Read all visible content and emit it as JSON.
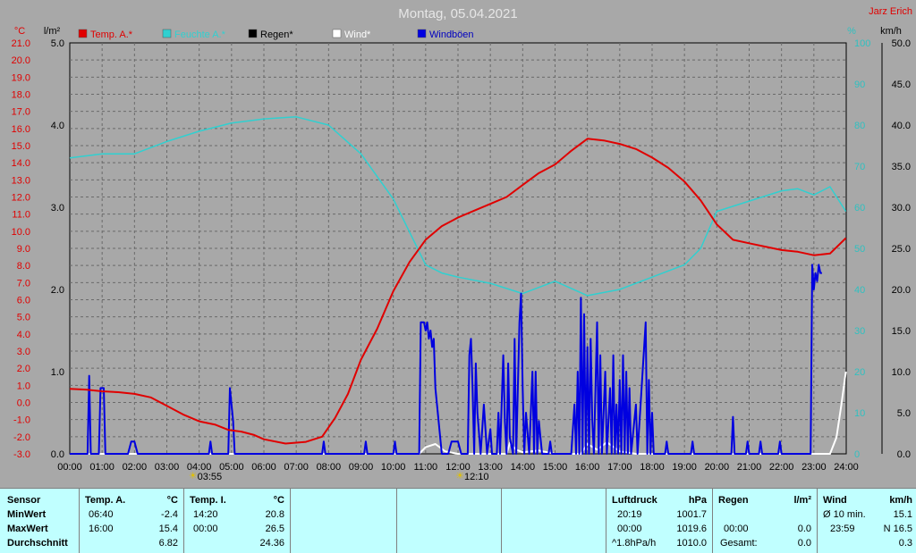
{
  "header": {
    "title": "Montag, 05.04.2021",
    "author": "Jarz Erich",
    "unit_temp": "°C",
    "unit_rain": "l/m²",
    "unit_hum": "%",
    "unit_wind": "km/h"
  },
  "colors": {
    "temp": "#e00000",
    "hum": "#30d0d0",
    "rain": "#000000",
    "wind": "#ffffff",
    "gust": "#0000e0",
    "grid": "#6a6a6a",
    "hum_axis": "#30c0c0",
    "plot_bg": "#a8a8a8"
  },
  "chart_data": {
    "type": "line",
    "title": "Montag, 05.04.2021",
    "x_ticks": [
      "00:00",
      "01:00",
      "02:00",
      "03:00",
      "04:00",
      "05:00",
      "06:00",
      "07:00",
      "08:00",
      "09:00",
      "10:00",
      "11:00",
      "12:00",
      "13:00",
      "14:00",
      "15:00",
      "16:00",
      "17:00",
      "18:00",
      "19:00",
      "20:00",
      "21:00",
      "22:00",
      "23:00",
      "24:00"
    ],
    "xlim": [
      0,
      24
    ],
    "axes": {
      "temp": {
        "unit": "°C",
        "range": [
          -3.0,
          21.0
        ],
        "ticks": [
          "21.0",
          "20.0",
          "19.0",
          "18.0",
          "17.0",
          "16.0",
          "15.0",
          "14.0",
          "13.0",
          "12.0",
          "11.0",
          "10.0",
          "9.0",
          "8.0",
          "7.0",
          "6.0",
          "5.0",
          "4.0",
          "3.0",
          "2.0",
          "1.0",
          "0.0",
          "-1.0",
          "-2.0",
          "-3.0"
        ]
      },
      "rain": {
        "unit": "l/m²",
        "range": [
          0,
          5.0
        ],
        "ticks": [
          "5.0",
          "4.0",
          "3.0",
          "2.0",
          "1.0",
          "0.0"
        ]
      },
      "humidity": {
        "unit": "%",
        "range": [
          0,
          100
        ],
        "ticks": [
          "100",
          "90",
          "80",
          "70",
          "60",
          "50",
          "40",
          "30",
          "20",
          "10",
          "0"
        ]
      },
      "wind": {
        "unit": "km/h",
        "range": [
          0,
          50
        ],
        "ticks": [
          "50.0",
          "45.0",
          "40.0",
          "35.0",
          "30.0",
          "25.0",
          "20.0",
          "15.0",
          "10.0",
          "5.0",
          "0.0"
        ]
      }
    },
    "series": [
      {
        "name": "Temp. A.*",
        "axis": "temp",
        "points": [
          [
            0,
            0.8
          ],
          [
            0.5,
            0.75
          ],
          [
            1,
            0.65
          ],
          [
            1.5,
            0.6
          ],
          [
            2,
            0.5
          ],
          [
            2.5,
            0.3
          ],
          [
            3,
            -0.2
          ],
          [
            3.5,
            -0.7
          ],
          [
            4,
            -1.1
          ],
          [
            4.5,
            -1.3
          ],
          [
            4.9,
            -1.6
          ],
          [
            5.3,
            -1.7
          ],
          [
            5.7,
            -1.9
          ],
          [
            6,
            -2.15
          ],
          [
            6.67,
            -2.4
          ],
          [
            7.3,
            -2.3
          ],
          [
            7.8,
            -2.0
          ],
          [
            8.2,
            -0.9
          ],
          [
            8.6,
            0.5
          ],
          [
            9,
            2.5
          ],
          [
            9.5,
            4.3
          ],
          [
            10,
            6.5
          ],
          [
            10.5,
            8.2
          ],
          [
            11,
            9.5
          ],
          [
            11.5,
            10.3
          ],
          [
            12,
            10.8
          ],
          [
            12.5,
            11.2
          ],
          [
            13,
            11.6
          ],
          [
            13.5,
            12.0
          ],
          [
            14,
            12.7
          ],
          [
            14.5,
            13.4
          ],
          [
            15,
            13.9
          ],
          [
            15.5,
            14.7
          ],
          [
            16,
            15.4
          ],
          [
            16.5,
            15.3
          ],
          [
            17,
            15.1
          ],
          [
            17.5,
            14.8
          ],
          [
            18,
            14.3
          ],
          [
            18.5,
            13.7
          ],
          [
            19,
            12.9
          ],
          [
            19.5,
            11.8
          ],
          [
            20,
            10.4
          ],
          [
            20.5,
            9.5
          ],
          [
            21,
            9.3
          ],
          [
            21.5,
            9.1
          ],
          [
            22,
            8.9
          ],
          [
            22.5,
            8.8
          ],
          [
            23,
            8.6
          ],
          [
            23.5,
            8.7
          ],
          [
            23.99,
            9.6
          ]
        ]
      },
      {
        "name": "Feuchte A.*",
        "axis": "humidity",
        "points": [
          [
            0,
            72
          ],
          [
            1,
            73
          ],
          [
            2,
            73
          ],
          [
            3,
            76
          ],
          [
            4,
            78.5
          ],
          [
            5,
            80.5
          ],
          [
            6,
            81.5
          ],
          [
            7,
            82
          ],
          [
            8,
            80
          ],
          [
            9,
            73
          ],
          [
            10,
            62
          ],
          [
            11,
            46
          ],
          [
            11.5,
            44
          ],
          [
            12,
            43
          ],
          [
            13,
            41.5
          ],
          [
            14,
            39
          ],
          [
            15,
            42
          ],
          [
            16,
            38.5
          ],
          [
            17,
            40
          ],
          [
            18,
            43
          ],
          [
            19,
            46
          ],
          [
            19.5,
            50
          ],
          [
            20,
            59
          ],
          [
            21,
            61.5
          ],
          [
            22,
            64
          ],
          [
            22.5,
            64.5
          ],
          [
            23,
            63
          ],
          [
            23.5,
            65
          ],
          [
            23.99,
            59
          ]
        ]
      },
      {
        "name": "Regen*",
        "axis": "rain",
        "points": [
          [
            0,
            0
          ],
          [
            24,
            0
          ]
        ]
      },
      {
        "name": "Wind*",
        "axis": "wind",
        "points": [
          [
            0,
            0
          ],
          [
            10.8,
            0
          ],
          [
            11,
            0.8
          ],
          [
            11.3,
            1.2
          ],
          [
            11.6,
            0.3
          ],
          [
            12,
            0
          ],
          [
            13.5,
            0
          ],
          [
            13.6,
            1.3
          ],
          [
            13.8,
            0.5
          ],
          [
            14,
            0.2
          ],
          [
            14.5,
            0.4
          ],
          [
            15,
            0
          ],
          [
            15.8,
            0
          ],
          [
            16,
            1.2
          ],
          [
            16.3,
            0.5
          ],
          [
            16.6,
            1.4
          ],
          [
            17,
            0.3
          ],
          [
            17.5,
            0
          ],
          [
            23.5,
            0
          ],
          [
            23.7,
            2
          ],
          [
            23.85,
            6
          ],
          [
            23.99,
            10
          ]
        ]
      },
      {
        "name": "Windböen",
        "axis": "wind",
        "points": [
          [
            0,
            0
          ],
          [
            0.55,
            0
          ],
          [
            0.6,
            9.5
          ],
          [
            0.65,
            0
          ],
          [
            0.9,
            0
          ],
          [
            0.95,
            8
          ],
          [
            1.05,
            8
          ],
          [
            1.1,
            0
          ],
          [
            1.8,
            0
          ],
          [
            1.9,
            1.5
          ],
          [
            2,
            1.5
          ],
          [
            2.1,
            0
          ],
          [
            4.3,
            0
          ],
          [
            4.35,
            1.5
          ],
          [
            4.4,
            0
          ],
          [
            4.9,
            0
          ],
          [
            4.95,
            8
          ],
          [
            5.05,
            4
          ],
          [
            5.1,
            0
          ],
          [
            7.8,
            0
          ],
          [
            7.85,
            1.5
          ],
          [
            7.9,
            0
          ],
          [
            9.1,
            0
          ],
          [
            9.15,
            1.5
          ],
          [
            9.2,
            0
          ],
          [
            10,
            0
          ],
          [
            10.05,
            1.5
          ],
          [
            10.1,
            0
          ],
          [
            10.8,
            0
          ],
          [
            10.85,
            16
          ],
          [
            10.95,
            16
          ],
          [
            11.0,
            15
          ],
          [
            11.05,
            16
          ],
          [
            11.1,
            14
          ],
          [
            11.15,
            15
          ],
          [
            11.2,
            13
          ],
          [
            11.25,
            14
          ],
          [
            11.3,
            8
          ],
          [
            11.4,
            4
          ],
          [
            11.5,
            0
          ],
          [
            11.7,
            0
          ],
          [
            11.8,
            1.5
          ],
          [
            12,
            1.5
          ],
          [
            12.1,
            0
          ],
          [
            12.3,
            0
          ],
          [
            12.35,
            12
          ],
          [
            12.4,
            14
          ],
          [
            12.45,
            8
          ],
          [
            12.5,
            0
          ],
          [
            12.55,
            11
          ],
          [
            12.6,
            5
          ],
          [
            12.7,
            0
          ],
          [
            12.8,
            6
          ],
          [
            12.9,
            0
          ],
          [
            13,
            3
          ],
          [
            13.05,
            0
          ],
          [
            13.2,
            0
          ],
          [
            13.25,
            5
          ],
          [
            13.3,
            0
          ],
          [
            13.4,
            12
          ],
          [
            13.45,
            4
          ],
          [
            13.5,
            0
          ],
          [
            13.55,
            11
          ],
          [
            13.6,
            2
          ],
          [
            13.7,
            0
          ],
          [
            13.75,
            14
          ],
          [
            13.8,
            0
          ],
          [
            13.9,
            16
          ],
          [
            13.95,
            19.5
          ],
          [
            14.0,
            8
          ],
          [
            14.05,
            0
          ],
          [
            14.1,
            5
          ],
          [
            14.2,
            0
          ],
          [
            14.3,
            10
          ],
          [
            14.35,
            0
          ],
          [
            14.4,
            10
          ],
          [
            14.45,
            0
          ],
          [
            14.5,
            4
          ],
          [
            14.6,
            0
          ],
          [
            14.8,
            0
          ],
          [
            14.85,
            1.5
          ],
          [
            14.9,
            0
          ],
          [
            15.5,
            0
          ],
          [
            15.6,
            6
          ],
          [
            15.65,
            0
          ],
          [
            15.7,
            10
          ],
          [
            15.75,
            0
          ],
          [
            15.8,
            19
          ],
          [
            15.85,
            0
          ],
          [
            15.9,
            17
          ],
          [
            15.95,
            0
          ],
          [
            16.0,
            13
          ],
          [
            16.05,
            0
          ],
          [
            16.1,
            14
          ],
          [
            16.15,
            4
          ],
          [
            16.2,
            0
          ],
          [
            16.3,
            16
          ],
          [
            16.35,
            0
          ],
          [
            16.4,
            12
          ],
          [
            16.45,
            0
          ],
          [
            16.55,
            10
          ],
          [
            16.6,
            0
          ],
          [
            16.7,
            8
          ],
          [
            16.75,
            0
          ],
          [
            16.8,
            12
          ],
          [
            16.85,
            0
          ],
          [
            16.9,
            6
          ],
          [
            16.95,
            0
          ],
          [
            17.0,
            9
          ],
          [
            17.05,
            0
          ],
          [
            17.1,
            12
          ],
          [
            17.15,
            0
          ],
          [
            17.2,
            10
          ],
          [
            17.25,
            0
          ],
          [
            17.3,
            8
          ],
          [
            17.35,
            0
          ],
          [
            17.5,
            6
          ],
          [
            17.55,
            0
          ],
          [
            17.8,
            16
          ],
          [
            17.85,
            0
          ],
          [
            17.9,
            9
          ],
          [
            17.95,
            0
          ],
          [
            18,
            5
          ],
          [
            18.05,
            0
          ],
          [
            18.4,
            0
          ],
          [
            18.45,
            1.5
          ],
          [
            18.5,
            0
          ],
          [
            19.2,
            0
          ],
          [
            19.25,
            1.5
          ],
          [
            19.3,
            0
          ],
          [
            20.45,
            0
          ],
          [
            20.5,
            4.5
          ],
          [
            20.55,
            0
          ],
          [
            20.9,
            0
          ],
          [
            20.95,
            1.5
          ],
          [
            21.0,
            0
          ],
          [
            21.3,
            0
          ],
          [
            21.35,
            1.5
          ],
          [
            21.4,
            0
          ],
          [
            21.9,
            0
          ],
          [
            21.95,
            1.5
          ],
          [
            22.0,
            0
          ],
          [
            22.9,
            0
          ],
          [
            22.95,
            23
          ],
          [
            23.0,
            20
          ],
          [
            23.05,
            22
          ],
          [
            23.1,
            21
          ],
          [
            23.15,
            23
          ],
          [
            23.2,
            22
          ],
          [
            23.25,
            22
          ]
        ]
      }
    ],
    "markers": [
      {
        "symbol": "☀",
        "label": "03:55",
        "x": 3.9167
      },
      {
        "symbol": "☀",
        "label": "12:10",
        "x": 12.1667
      }
    ]
  },
  "stats": {
    "sensor_title": "Sensor",
    "row_labels": [
      "MinWert",
      "MaxWert",
      "Durchschnitt"
    ],
    "temp_a": {
      "title": "Temp. A.",
      "unit": "°C",
      "min_time": "06:40",
      "min_val": "-2.4",
      "max_time": "16:00",
      "max_val": "15.4",
      "avg": "6.82"
    },
    "temp_i": {
      "title": "Temp. I.",
      "unit": "°C",
      "min_time": "14:20",
      "min_val": "20.8",
      "max_time": "00:00",
      "max_val": "26.5",
      "avg": "24.36"
    },
    "pressure": {
      "title": "Luftdruck",
      "unit": "hPa",
      "min_time": "20:19",
      "min_val": "1001.7",
      "max_time": "00:00",
      "max_val": "1019.6",
      "trend": "^1.8hPa/h",
      "avg": "1010.0"
    },
    "rain": {
      "title": "Regen",
      "unit": "l/m²",
      "r2_time": "00:00",
      "r2_val": "0.0",
      "total_label": "Gesamt:",
      "total_val": "0.0"
    },
    "wind": {
      "title": "Wind",
      "unit": "km/h",
      "r1_label": "Ø 10 min.",
      "r1_val": "15.1",
      "r2_time": "23:59",
      "r2_val": "N 16.5",
      "avg": "0.3"
    }
  }
}
